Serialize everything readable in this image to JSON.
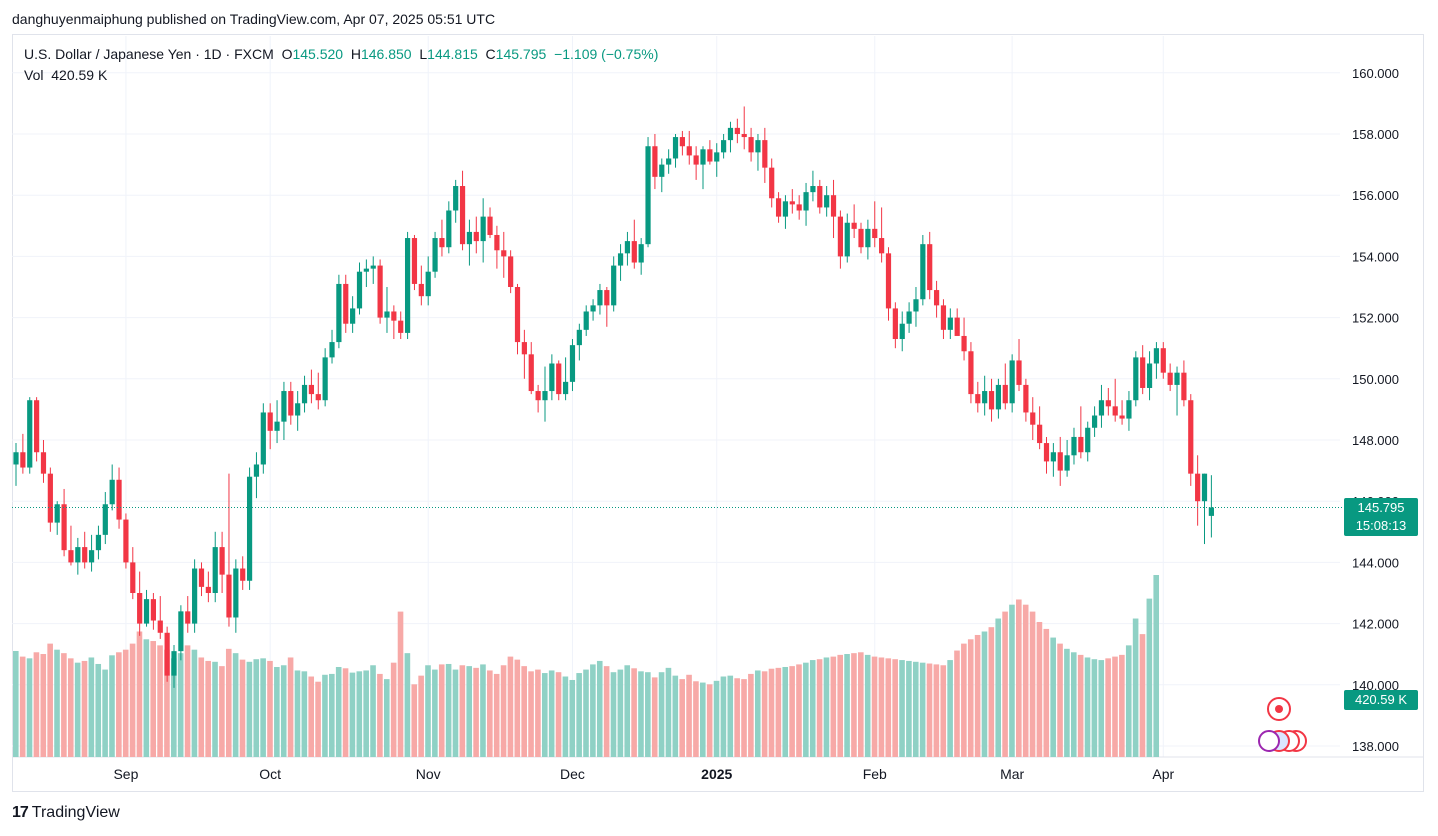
{
  "header": {
    "publisher": "danghuyenmaiphung published on TradingView.com, Apr 07, 2025 05:51 UTC"
  },
  "legend": {
    "symbol": "U.S. Dollar / Japanese Yen · 1D · FXCM",
    "o_label": "O",
    "o_value": "145.520",
    "h_label": "H",
    "h_value": "146.850",
    "l_label": "L",
    "l_value": "144.815",
    "c_label": "C",
    "c_value": "145.795",
    "change": "−1.109 (−0.75%)",
    "vol_label": "Vol",
    "vol_value": "420.59 K"
  },
  "price_tag": {
    "price": "145.795",
    "countdown": "15:08:13"
  },
  "volume_tag": "420.59 K",
  "brand": {
    "mark": "17",
    "name": "TradingView"
  },
  "colors": {
    "up": "#089981",
    "down": "#f23645",
    "up_vol": "#8fd1c5",
    "down_vol": "#f7a9a7"
  },
  "chart_data": {
    "type": "candlestick",
    "title": "U.S. Dollar / Japanese Yen",
    "interval": "1D",
    "ylim": [
      137.7,
      161.2
    ],
    "y_ticks": [
      "138.000",
      "140.000",
      "142.000",
      "144.000",
      "146.000",
      "148.000",
      "150.000",
      "152.000",
      "154.000",
      "156.000",
      "158.000",
      "160.000"
    ],
    "x_ticks": [
      {
        "label": "Sep",
        "index": 16,
        "bold": false
      },
      {
        "label": "Oct",
        "index": 37,
        "bold": false
      },
      {
        "label": "Nov",
        "index": 60,
        "bold": false
      },
      {
        "label": "Dec",
        "index": 81,
        "bold": false
      },
      {
        "label": "2025",
        "index": 102,
        "bold": true
      },
      {
        "label": "Feb",
        "index": 125,
        "bold": false
      },
      {
        "label": "Mar",
        "index": 145,
        "bold": false
      },
      {
        "label": "Apr",
        "index": 167,
        "bold": false
      }
    ],
    "last_price": 145.795,
    "ohlc": [
      [
        147.2,
        147.9,
        146.5,
        147.6
      ],
      [
        147.6,
        148.2,
        146.9,
        147.1
      ],
      [
        147.1,
        149.4,
        146.9,
        149.3
      ],
      [
        149.3,
        149.4,
        147.3,
        147.6
      ],
      [
        147.6,
        148.0,
        146.6,
        146.9
      ],
      [
        146.9,
        147.1,
        145.0,
        145.3
      ],
      [
        145.3,
        146.0,
        144.9,
        145.9
      ],
      [
        145.9,
        146.4,
        144.2,
        144.4
      ],
      [
        144.4,
        145.2,
        143.9,
        144.0
      ],
      [
        144.0,
        144.8,
        143.6,
        144.5
      ],
      [
        144.5,
        145.0,
        143.8,
        144.0
      ],
      [
        144.0,
        144.9,
        143.7,
        144.4
      ],
      [
        144.4,
        145.2,
        144.1,
        144.9
      ],
      [
        144.9,
        146.3,
        144.6,
        145.9
      ],
      [
        145.9,
        147.2,
        145.7,
        146.7
      ],
      [
        146.7,
        147.1,
        145.1,
        145.4
      ],
      [
        145.4,
        145.6,
        143.8,
        144.0
      ],
      [
        144.0,
        144.5,
        142.8,
        143.0
      ],
      [
        143.0,
        143.7,
        141.6,
        142.0
      ],
      [
        142.0,
        143.1,
        141.9,
        142.8
      ],
      [
        142.8,
        143.0,
        141.8,
        142.1
      ],
      [
        142.1,
        142.9,
        141.5,
        141.7
      ],
      [
        141.7,
        141.9,
        140.1,
        140.3
      ],
      [
        140.3,
        141.3,
        139.9,
        141.1
      ],
      [
        141.1,
        142.6,
        140.8,
        142.4
      ],
      [
        142.4,
        142.9,
        141.7,
        142.0
      ],
      [
        142.0,
        144.1,
        141.7,
        143.8
      ],
      [
        143.8,
        144.0,
        142.9,
        143.2
      ],
      [
        143.2,
        143.7,
        142.7,
        143.0
      ],
      [
        143.0,
        145.0,
        142.7,
        144.5
      ],
      [
        144.5,
        145.0,
        143.0,
        143.6
      ],
      [
        143.6,
        146.9,
        141.9,
        142.2
      ],
      [
        142.2,
        144.1,
        141.7,
        143.8
      ],
      [
        143.8,
        144.2,
        143.1,
        143.4
      ],
      [
        143.4,
        147.1,
        143.1,
        146.8
      ],
      [
        146.8,
        147.6,
        146.1,
        147.2
      ],
      [
        147.2,
        149.2,
        146.9,
        148.9
      ],
      [
        148.9,
        149.2,
        147.7,
        148.3
      ],
      [
        148.3,
        149.3,
        147.9,
        148.6
      ],
      [
        148.6,
        149.9,
        148.0,
        149.6
      ],
      [
        149.6,
        149.9,
        148.5,
        148.8
      ],
      [
        148.8,
        149.6,
        148.3,
        149.2
      ],
      [
        149.2,
        150.1,
        148.9,
        149.8
      ],
      [
        149.8,
        150.3,
        149.2,
        149.5
      ],
      [
        149.5,
        150.2,
        149.0,
        149.3
      ],
      [
        149.3,
        151.0,
        149.1,
        150.7
      ],
      [
        150.7,
        151.6,
        150.5,
        151.2
      ],
      [
        151.2,
        153.4,
        151.0,
        153.1
      ],
      [
        153.1,
        153.4,
        151.5,
        151.8
      ],
      [
        151.8,
        152.7,
        151.5,
        152.3
      ],
      [
        152.3,
        153.8,
        152.1,
        153.5
      ],
      [
        153.5,
        153.9,
        153.0,
        153.6
      ],
      [
        153.6,
        154.0,
        153.1,
        153.7
      ],
      [
        153.7,
        153.9,
        151.8,
        152.0
      ],
      [
        152.0,
        153.0,
        151.5,
        152.2
      ],
      [
        152.2,
        152.4,
        151.3,
        151.9
      ],
      [
        151.9,
        152.2,
        151.3,
        151.5
      ],
      [
        151.5,
        154.8,
        151.3,
        154.6
      ],
      [
        154.6,
        154.7,
        152.9,
        153.1
      ],
      [
        153.1,
        153.7,
        152.4,
        152.7
      ],
      [
        152.7,
        154.0,
        152.4,
        153.5
      ],
      [
        153.5,
        154.8,
        153.3,
        154.6
      ],
      [
        154.6,
        155.2,
        154.0,
        154.3
      ],
      [
        154.3,
        155.8,
        154.1,
        155.5
      ],
      [
        155.5,
        156.5,
        155.1,
        156.3
      ],
      [
        156.3,
        156.8,
        154.2,
        154.4
      ],
      [
        154.4,
        155.2,
        153.7,
        154.8
      ],
      [
        154.8,
        155.3,
        154.1,
        154.5
      ],
      [
        154.5,
        155.9,
        153.8,
        155.3
      ],
      [
        155.3,
        155.6,
        154.6,
        154.7
      ],
      [
        154.7,
        155.0,
        153.6,
        154.2
      ],
      [
        154.2,
        154.8,
        153.3,
        154.0
      ],
      [
        154.0,
        154.2,
        152.8,
        153.0
      ],
      [
        153.0,
        153.1,
        150.8,
        151.2
      ],
      [
        151.2,
        151.6,
        150.0,
        150.8
      ],
      [
        150.8,
        151.2,
        149.5,
        149.6
      ],
      [
        149.6,
        149.8,
        148.9,
        149.3
      ],
      [
        149.3,
        150.4,
        148.6,
        149.6
      ],
      [
        149.6,
        150.8,
        149.3,
        150.5
      ],
      [
        150.5,
        150.6,
        149.3,
        149.5
      ],
      [
        149.5,
        150.7,
        149.3,
        149.9
      ],
      [
        149.9,
        151.3,
        149.6,
        151.1
      ],
      [
        151.1,
        151.8,
        150.6,
        151.6
      ],
      [
        151.6,
        152.4,
        151.4,
        152.2
      ],
      [
        152.2,
        152.6,
        151.9,
        152.4
      ],
      [
        152.4,
        153.1,
        152.1,
        152.9
      ],
      [
        152.9,
        153.0,
        151.7,
        152.4
      ],
      [
        152.4,
        154.0,
        152.2,
        153.7
      ],
      [
        153.7,
        154.4,
        153.2,
        154.1
      ],
      [
        154.1,
        154.8,
        153.7,
        154.5
      ],
      [
        154.5,
        155.2,
        153.6,
        153.8
      ],
      [
        153.8,
        154.6,
        153.4,
        154.4
      ],
      [
        154.4,
        157.9,
        154.3,
        157.6
      ],
      [
        157.6,
        158.0,
        156.2,
        156.6
      ],
      [
        156.6,
        157.2,
        156.1,
        157.0
      ],
      [
        157.0,
        157.5,
        156.7,
        157.2
      ],
      [
        157.2,
        158.0,
        156.9,
        157.9
      ],
      [
        157.9,
        158.1,
        157.3,
        157.6
      ],
      [
        157.6,
        158.1,
        157.0,
        157.3
      ],
      [
        157.3,
        157.6,
        156.5,
        157.0
      ],
      [
        157.0,
        157.6,
        156.2,
        157.5
      ],
      [
        157.5,
        157.8,
        157.0,
        157.1
      ],
      [
        157.1,
        157.7,
        156.6,
        157.4
      ],
      [
        157.4,
        158.0,
        157.2,
        157.8
      ],
      [
        157.8,
        158.4,
        157.4,
        158.2
      ],
      [
        158.2,
        158.5,
        157.7,
        158.0
      ],
      [
        158.0,
        158.9,
        157.5,
        157.9
      ],
      [
        157.9,
        158.2,
        157.1,
        157.4
      ],
      [
        157.4,
        158.0,
        156.8,
        157.8
      ],
      [
        157.8,
        158.2,
        156.4,
        156.9
      ],
      [
        156.9,
        157.2,
        155.6,
        155.9
      ],
      [
        155.9,
        156.1,
        155.1,
        155.3
      ],
      [
        155.3,
        156.0,
        154.9,
        155.8
      ],
      [
        155.8,
        156.2,
        155.4,
        155.7
      ],
      [
        155.7,
        156.0,
        155.2,
        155.5
      ],
      [
        155.5,
        156.4,
        155.0,
        156.1
      ],
      [
        156.1,
        156.8,
        155.8,
        156.3
      ],
      [
        156.3,
        156.5,
        155.4,
        155.6
      ],
      [
        155.6,
        156.3,
        155.3,
        156.0
      ],
      [
        156.0,
        156.5,
        154.6,
        155.3
      ],
      [
        155.3,
        155.5,
        153.6,
        154.0
      ],
      [
        154.0,
        155.4,
        153.8,
        155.1
      ],
      [
        155.1,
        155.7,
        154.6,
        154.9
      ],
      [
        154.9,
        155.1,
        154.1,
        154.3
      ],
      [
        154.3,
        155.2,
        153.9,
        154.9
      ],
      [
        154.9,
        155.8,
        154.3,
        154.6
      ],
      [
        154.6,
        155.6,
        153.8,
        154.1
      ],
      [
        154.1,
        154.3,
        151.9,
        152.3
      ],
      [
        152.3,
        152.5,
        151.0,
        151.3
      ],
      [
        151.3,
        152.2,
        150.9,
        151.8
      ],
      [
        151.8,
        152.5,
        151.5,
        152.2
      ],
      [
        152.2,
        153.0,
        151.7,
        152.6
      ],
      [
        152.6,
        154.7,
        152.4,
        154.4
      ],
      [
        154.4,
        154.8,
        152.6,
        152.9
      ],
      [
        152.9,
        153.2,
        152.0,
        152.4
      ],
      [
        152.4,
        152.6,
        151.3,
        151.6
      ],
      [
        151.6,
        152.3,
        151.3,
        152.0
      ],
      [
        152.0,
        152.3,
        151.5,
        151.4
      ],
      [
        151.4,
        152.0,
        150.6,
        150.9
      ],
      [
        150.9,
        151.2,
        149.2,
        149.5
      ],
      [
        149.5,
        149.9,
        148.9,
        149.2
      ],
      [
        149.2,
        150.1,
        148.8,
        149.6
      ],
      [
        149.6,
        150.0,
        148.6,
        149.0
      ],
      [
        149.0,
        150.0,
        148.7,
        149.8
      ],
      [
        149.8,
        150.5,
        149.0,
        149.2
      ],
      [
        149.2,
        150.8,
        148.9,
        150.6
      ],
      [
        150.6,
        151.3,
        149.6,
        149.8
      ],
      [
        149.8,
        150.0,
        148.6,
        148.9
      ],
      [
        148.9,
        149.4,
        148.0,
        148.5
      ],
      [
        148.5,
        149.1,
        147.7,
        147.9
      ],
      [
        147.9,
        148.1,
        146.9,
        147.3
      ],
      [
        147.3,
        147.9,
        146.8,
        147.6
      ],
      [
        147.6,
        148.1,
        146.5,
        147.0
      ],
      [
        147.0,
        148.0,
        146.8,
        147.5
      ],
      [
        147.5,
        148.4,
        147.2,
        148.1
      ],
      [
        148.1,
        149.1,
        147.4,
        147.6
      ],
      [
        147.6,
        148.6,
        147.3,
        148.4
      ],
      [
        148.4,
        149.1,
        148.1,
        148.8
      ],
      [
        148.8,
        149.8,
        148.4,
        149.3
      ],
      [
        149.3,
        149.7,
        148.8,
        149.1
      ],
      [
        149.1,
        150.0,
        148.6,
        148.8
      ],
      [
        148.8,
        149.3,
        148.5,
        148.7
      ],
      [
        148.7,
        149.6,
        148.3,
        149.3
      ],
      [
        149.3,
        150.9,
        149.1,
        150.7
      ],
      [
        150.7,
        151.1,
        149.5,
        149.7
      ],
      [
        149.7,
        150.9,
        149.3,
        150.5
      ],
      [
        150.5,
        151.2,
        150.0,
        151.0
      ],
      [
        151.0,
        151.2,
        150.0,
        150.2
      ],
      [
        150.2,
        150.5,
        149.6,
        149.8
      ],
      [
        149.8,
        150.4,
        148.8,
        150.2
      ],
      [
        150.2,
        150.6,
        149.1,
        149.3
      ],
      [
        149.3,
        149.5,
        146.5,
        146.9
      ],
      [
        146.9,
        147.5,
        145.2,
        146.0
      ],
      [
        146.0,
        146.9,
        144.6,
        146.9
      ],
      [
        145.52,
        146.85,
        144.815,
        145.795
      ]
    ],
    "volume_k": [
      245,
      232,
      228,
      242,
      238,
      262,
      248,
      240,
      228,
      218,
      222,
      230,
      215,
      202,
      235,
      242,
      248,
      262,
      290,
      272,
      268,
      258,
      248,
      228,
      240,
      258,
      248,
      230,
      222,
      220,
      210,
      250,
      240,
      225,
      220,
      226,
      228,
      222,
      208,
      212,
      230,
      200,
      198,
      186,
      174,
      190,
      192,
      208,
      205,
      195,
      198,
      200,
      212,
      192,
      180,
      218,
      336,
      240,
      168,
      188,
      212,
      202,
      214,
      215,
      202,
      212,
      210,
      206,
      214,
      200,
      192,
      212,
      232,
      225,
      210,
      198,
      202,
      194,
      200,
      196,
      186,
      178,
      194,
      202,
      214,
      222,
      210,
      196,
      202,
      212,
      205,
      198,
      196,
      184,
      196,
      206,
      188,
      180,
      190,
      175,
      172,
      168,
      176,
      186,
      188,
      182,
      180,
      192,
      200,
      198,
      204,
      206,
      208,
      210,
      214,
      218,
      224,
      226,
      230,
      232,
      236,
      238,
      240,
      242,
      236,
      232,
      230,
      228,
      226,
      224,
      222,
      220,
      218,
      216,
      214,
      212,
      224,
      246,
      262,
      272,
      282,
      290,
      300,
      320,
      336,
      352,
      364,
      352,
      336,
      312,
      296,
      276,
      262,
      250,
      242,
      236,
      230,
      226,
      224,
      228,
      232,
      236,
      258,
      320,
      284,
      366,
      420.59
    ]
  }
}
